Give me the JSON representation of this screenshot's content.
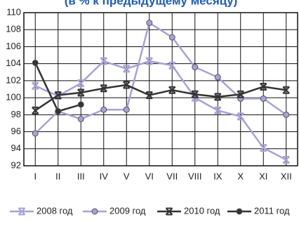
{
  "chart_data": {
    "type": "line",
    "title": "(в % к предыдущему месяцу)",
    "categories": [
      "I",
      "II",
      "III",
      "IV",
      "V",
      "VI",
      "VII",
      "VIII",
      "IX",
      "X",
      "XI",
      "XII"
    ],
    "ylim": [
      92,
      110
    ],
    "yticks": [
      92,
      94,
      96,
      98,
      100,
      102,
      104,
      106,
      108,
      110
    ],
    "grid": true,
    "series": [
      {
        "name": "2008 год",
        "color": "#a7a2d6",
        "marker": "x",
        "values": [
          101.4,
          100.2,
          101.7,
          104.3,
          103.4,
          104.3,
          103.8,
          100.0,
          98.5,
          97.8,
          94.1,
          92.7
        ]
      },
      {
        "name": "2009 год",
        "color": "#a7a2d6",
        "marker": "circle",
        "values": [
          95.8,
          98.4,
          97.5,
          98.6,
          98.6,
          108.8,
          107.1,
          103.6,
          102.4,
          99.9,
          99.9,
          98.0
        ]
      },
      {
        "name": "2010 год",
        "color": "#333333",
        "marker": "x",
        "values": [
          98.5,
          100.3,
          100.6,
          101.1,
          101.5,
          100.3,
          100.9,
          100.4,
          100.1,
          100.4,
          101.3,
          100.9
        ]
      },
      {
        "name": "2011 год",
        "color": "#333333",
        "marker": "circle",
        "values": [
          104.1,
          98.4,
          99.2,
          null,
          null,
          null,
          null,
          null,
          null,
          null,
          null,
          null
        ]
      }
    ]
  }
}
